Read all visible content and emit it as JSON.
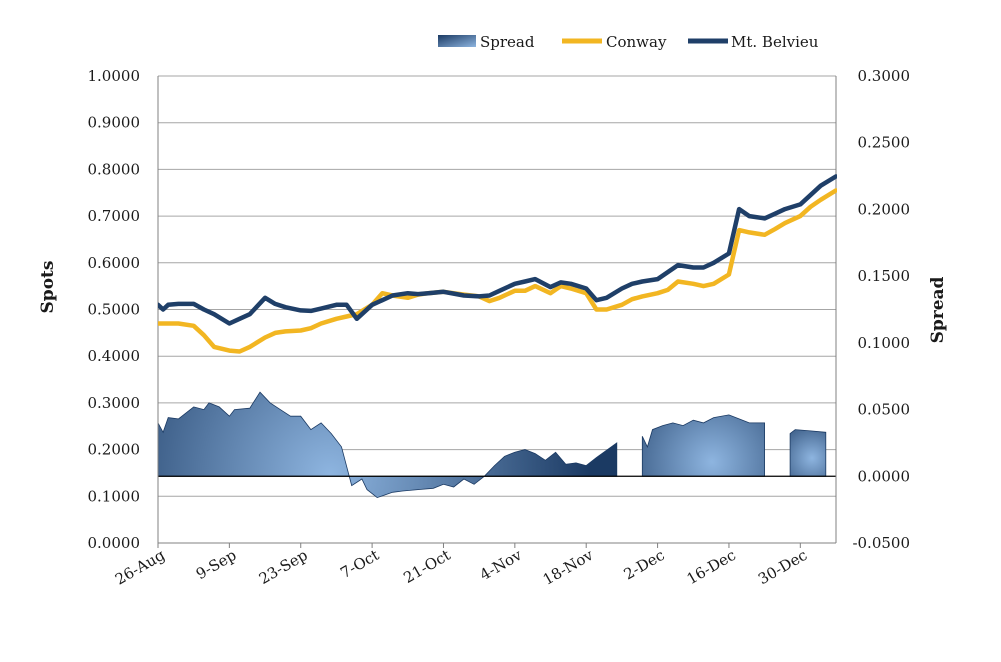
{
  "chart_data": {
    "type": "line",
    "title": "",
    "xlabel": "",
    "ylabel": "Spots",
    "y2label": "Spread",
    "ylim": [
      0,
      1
    ],
    "y2lim": [
      -0.05,
      0.3
    ],
    "grid": true,
    "legend_position": "top-right",
    "x_range": [
      "2019-08-26",
      "2020-01-06"
    ],
    "x_ticks": [
      "26-Aug",
      "9-Sep",
      "23-Sep",
      "7-Oct",
      "21-Oct",
      "4-Nov",
      "18-Nov",
      "2-Dec",
      "16-Dec",
      "30-Dec"
    ],
    "y_ticks": [
      "0.0000",
      "0.1000",
      "0.2000",
      "0.3000",
      "0.4000",
      "0.5000",
      "0.6000",
      "0.7000",
      "0.8000",
      "0.9000",
      "1.0000"
    ],
    "y2_ticks": [
      "-0.0500",
      "0.0000",
      "0.0500",
      "0.1000",
      "0.1500",
      "0.2000",
      "0.2500",
      "0.3000"
    ],
    "legend": [
      "Spread",
      "Conway",
      "Mt. Belvieu"
    ],
    "colors": {
      "conway": "#f2b622",
      "belvieu": "#1f3f68",
      "spread_dark": "#1b3a63",
      "spread_light": "#8eb5e0",
      "grid": "#a6a6a6",
      "axis": "#808080"
    },
    "series": [
      {
        "name": "Conway",
        "axis": "left",
        "points": [
          [
            "2019-08-26",
            0.47
          ],
          [
            "2019-08-28",
            0.47
          ],
          [
            "2019-08-30",
            0.47
          ],
          [
            "2019-09-02",
            0.465
          ],
          [
            "2019-09-04",
            0.445
          ],
          [
            "2019-09-06",
            0.42
          ],
          [
            "2019-09-09",
            0.412
          ],
          [
            "2019-09-11",
            0.41
          ],
          [
            "2019-09-13",
            0.42
          ],
          [
            "2019-09-16",
            0.44
          ],
          [
            "2019-09-18",
            0.45
          ],
          [
            "2019-09-20",
            0.453
          ],
          [
            "2019-09-23",
            0.455
          ],
          [
            "2019-09-25",
            0.46
          ],
          [
            "2019-09-27",
            0.47
          ],
          [
            "2019-09-30",
            0.48
          ],
          [
            "2019-10-02",
            0.485
          ],
          [
            "2019-10-04",
            0.49
          ],
          [
            "2019-10-07",
            0.51
          ],
          [
            "2019-10-09",
            0.535
          ],
          [
            "2019-10-11",
            0.53
          ],
          [
            "2019-10-14",
            0.525
          ],
          [
            "2019-10-16",
            0.532
          ],
          [
            "2019-10-18",
            0.535
          ],
          [
            "2019-10-21",
            0.538
          ],
          [
            "2019-10-23",
            0.535
          ],
          [
            "2019-10-25",
            0.532
          ],
          [
            "2019-10-28",
            0.528
          ],
          [
            "2019-10-30",
            0.518
          ],
          [
            "2019-11-01",
            0.525
          ],
          [
            "2019-11-04",
            0.54
          ],
          [
            "2019-11-06",
            0.54
          ],
          [
            "2019-11-08",
            0.55
          ],
          [
            "2019-11-11",
            0.535
          ],
          [
            "2019-11-13",
            0.55
          ],
          [
            "2019-11-15",
            0.545
          ],
          [
            "2019-11-18",
            0.535
          ],
          [
            "2019-11-20",
            0.5
          ],
          [
            "2019-11-22",
            0.5
          ],
          [
            "2019-11-25",
            0.51
          ],
          [
            "2019-11-27",
            0.522
          ],
          [
            "2019-11-29",
            0.528
          ],
          [
            "2019-12-02",
            0.535
          ],
          [
            "2019-12-04",
            0.542
          ],
          [
            "2019-12-06",
            0.56
          ],
          [
            "2019-12-09",
            0.555
          ],
          [
            "2019-12-11",
            0.55
          ],
          [
            "2019-12-13",
            0.555
          ],
          [
            "2019-12-16",
            0.575
          ],
          [
            "2019-12-18",
            0.67
          ],
          [
            "2019-12-20",
            0.665
          ],
          [
            "2019-12-23",
            0.66
          ],
          [
            "2019-12-25",
            0.672
          ],
          [
            "2019-12-27",
            0.685
          ],
          [
            "2019-12-30",
            0.7
          ],
          [
            "2020-01-01",
            0.72
          ],
          [
            "2020-01-03",
            0.735
          ],
          [
            "2020-01-06",
            0.755
          ]
        ]
      },
      {
        "name": "Mt. Belvieu",
        "axis": "left",
        "points": [
          [
            "2019-08-26",
            0.51
          ],
          [
            "2019-08-27",
            0.5
          ],
          [
            "2019-08-28",
            0.51
          ],
          [
            "2019-08-30",
            0.512
          ],
          [
            "2019-09-02",
            0.512
          ],
          [
            "2019-09-04",
            0.5
          ],
          [
            "2019-09-06",
            0.49
          ],
          [
            "2019-09-09",
            0.47
          ],
          [
            "2019-09-11",
            0.48
          ],
          [
            "2019-09-13",
            0.49
          ],
          [
            "2019-09-16",
            0.525
          ],
          [
            "2019-09-18",
            0.512
          ],
          [
            "2019-09-20",
            0.505
          ],
          [
            "2019-09-23",
            0.498
          ],
          [
            "2019-09-25",
            0.497
          ],
          [
            "2019-09-27",
            0.502
          ],
          [
            "2019-09-30",
            0.51
          ],
          [
            "2019-10-02",
            0.51
          ],
          [
            "2019-10-04",
            0.48
          ],
          [
            "2019-10-07",
            0.51
          ],
          [
            "2019-10-09",
            0.52
          ],
          [
            "2019-10-11",
            0.53
          ],
          [
            "2019-10-14",
            0.535
          ],
          [
            "2019-10-16",
            0.533
          ],
          [
            "2019-10-18",
            0.535
          ],
          [
            "2019-10-21",
            0.538
          ],
          [
            "2019-10-23",
            0.534
          ],
          [
            "2019-10-25",
            0.53
          ],
          [
            "2019-10-28",
            0.528
          ],
          [
            "2019-10-30",
            0.53
          ],
          [
            "2019-11-01",
            0.54
          ],
          [
            "2019-11-04",
            0.555
          ],
          [
            "2019-11-06",
            0.56
          ],
          [
            "2019-11-08",
            0.565
          ],
          [
            "2019-11-11",
            0.548
          ],
          [
            "2019-11-13",
            0.558
          ],
          [
            "2019-11-15",
            0.555
          ],
          [
            "2019-11-18",
            0.545
          ],
          [
            "2019-11-20",
            0.52
          ],
          [
            "2019-11-22",
            0.525
          ],
          [
            "2019-11-25",
            0.545
          ],
          [
            "2019-11-27",
            0.555
          ],
          [
            "2019-11-29",
            0.56
          ],
          [
            "2019-12-02",
            0.565
          ],
          [
            "2019-12-04",
            0.58
          ],
          [
            "2019-12-06",
            0.595
          ],
          [
            "2019-12-09",
            0.59
          ],
          [
            "2019-12-11",
            0.59
          ],
          [
            "2019-12-13",
            0.6
          ],
          [
            "2019-12-16",
            0.62
          ],
          [
            "2019-12-18",
            0.715
          ],
          [
            "2019-12-20",
            0.7
          ],
          [
            "2019-12-23",
            0.695
          ],
          [
            "2019-12-25",
            0.705
          ],
          [
            "2019-12-27",
            0.715
          ],
          [
            "2019-12-30",
            0.725
          ],
          [
            "2020-01-01",
            0.745
          ],
          [
            "2020-01-03",
            0.765
          ],
          [
            "2020-01-06",
            0.785
          ]
        ]
      },
      {
        "name": "Spread",
        "axis": "right",
        "segments": [
          [
            [
              "2019-08-26",
              0.04
            ],
            [
              "2019-08-27",
              0.033
            ],
            [
              "2019-08-28",
              0.044
            ],
            [
              "2019-08-30",
              0.043
            ],
            [
              "2019-09-02",
              0.052
            ],
            [
              "2019-09-04",
              0.05
            ],
            [
              "2019-09-05",
              0.055
            ],
            [
              "2019-09-07",
              0.052
            ],
            [
              "2019-09-09",
              0.045
            ],
            [
              "2019-09-10",
              0.05
            ],
            [
              "2019-09-13",
              0.051
            ],
            [
              "2019-09-15",
              0.063
            ],
            [
              "2019-09-17",
              0.055
            ],
            [
              "2019-09-19",
              0.05
            ],
            [
              "2019-09-21",
              0.045
            ],
            [
              "2019-09-23",
              0.045
            ],
            [
              "2019-09-25",
              0.035
            ],
            [
              "2019-09-27",
              0.04
            ],
            [
              "2019-09-29",
              0.032
            ],
            [
              "2019-10-01",
              0.022
            ],
            [
              "2019-10-03",
              -0.007
            ],
            [
              "2019-10-05",
              -0.002
            ],
            [
              "2019-10-06",
              -0.01
            ],
            [
              "2019-10-08",
              -0.016
            ],
            [
              "2019-10-11",
              -0.012
            ],
            [
              "2019-10-13",
              -0.011
            ],
            [
              "2019-10-16",
              -0.01
            ],
            [
              "2019-10-19",
              -0.009
            ],
            [
              "2019-10-21",
              -0.006
            ],
            [
              "2019-10-23",
              -0.008
            ],
            [
              "2019-10-25",
              -0.002
            ],
            [
              "2019-10-27",
              -0.006
            ],
            [
              "2019-10-29",
              0.0
            ],
            [
              "2019-10-31",
              0.008
            ],
            [
              "2019-11-02",
              0.015
            ],
            [
              "2019-11-04",
              0.018
            ],
            [
              "2019-11-06",
              0.02
            ],
            [
              "2019-11-08",
              0.017
            ],
            [
              "2019-11-10",
              0.012
            ],
            [
              "2019-11-12",
              0.018
            ],
            [
              "2019-11-14",
              0.009
            ],
            [
              "2019-11-16",
              0.01
            ],
            [
              "2019-11-18",
              0.008
            ],
            [
              "2019-11-20",
              0.014
            ],
            [
              "2019-11-24",
              0.025
            ]
          ],
          [
            [
              "2019-11-29",
              0.03
            ],
            [
              "2019-11-30",
              0.022
            ],
            [
              "2019-12-01",
              0.035
            ],
            [
              "2019-12-03",
              0.038
            ],
            [
              "2019-12-05",
              0.04
            ],
            [
              "2019-12-07",
              0.038
            ],
            [
              "2019-12-09",
              0.042
            ],
            [
              "2019-12-11",
              0.04
            ],
            [
              "2019-12-13",
              0.044
            ],
            [
              "2019-12-16",
              0.046
            ],
            [
              "2019-12-18",
              0.043
            ],
            [
              "2019-12-20",
              0.04
            ],
            [
              "2019-12-23",
              0.04
            ]
          ],
          [
            [
              "2019-12-28",
              0.032
            ],
            [
              "2019-12-29",
              0.035
            ],
            [
              "2020-01-01",
              0.034
            ],
            [
              "2020-01-04",
              0.033
            ]
          ]
        ]
      }
    ]
  }
}
